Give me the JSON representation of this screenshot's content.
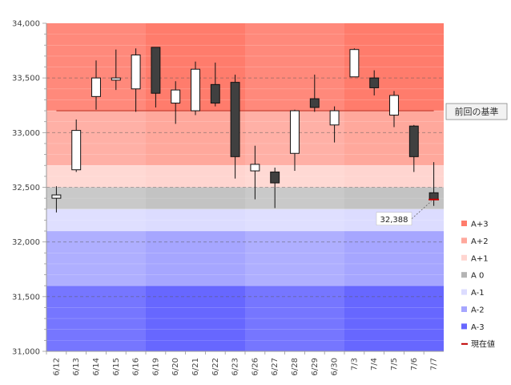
{
  "chart_data": {
    "type": "candlestick",
    "ylim": [
      31000,
      34000
    ],
    "yticks": [
      31000,
      31500,
      32000,
      32500,
      33000,
      33500,
      34000
    ],
    "ytick_labels": [
      "31,000",
      "31,500",
      "32,000",
      "32,500",
      "33,000",
      "33,500",
      "34,000"
    ],
    "categories": [
      "6/12",
      "6/13",
      "6/14",
      "6/15",
      "6/16",
      "6/19",
      "6/20",
      "6/21",
      "6/22",
      "6/23",
      "6/26",
      "6/27",
      "6/28",
      "6/29",
      "6/30",
      "7/3",
      "7/4",
      "7/5",
      "7/6",
      "7/7"
    ],
    "candles": [
      {
        "open": 32400,
        "close": 32430,
        "high": 32510,
        "low": 32270
      },
      {
        "open": 32660,
        "close": 33020,
        "high": 33120,
        "low": 32640
      },
      {
        "open": 33330,
        "close": 33500,
        "high": 33660,
        "low": 33210
      },
      {
        "open": 33480,
        "close": 33500,
        "high": 33760,
        "low": 33390
      },
      {
        "open": 33400,
        "close": 33710,
        "high": 33770,
        "low": 33190
      },
      {
        "open": 33780,
        "close": 33360,
        "high": 33780,
        "low": 33230
      },
      {
        "open": 33270,
        "close": 33390,
        "high": 33470,
        "low": 33080
      },
      {
        "open": 33200,
        "close": 33580,
        "high": 33650,
        "low": 33160
      },
      {
        "open": 33440,
        "close": 33270,
        "high": 33640,
        "low": 33240
      },
      {
        "open": 33460,
        "close": 32780,
        "high": 33530,
        "low": 32580
      },
      {
        "open": 32650,
        "close": 32710,
        "high": 32880,
        "low": 32390
      },
      {
        "open": 32640,
        "close": 32540,
        "high": 32680,
        "low": 32310
      },
      {
        "open": 32810,
        "close": 33200,
        "high": 33210,
        "low": 32650
      },
      {
        "open": 33310,
        "close": 33230,
        "high": 33530,
        "low": 33190
      },
      {
        "open": 33070,
        "close": 33200,
        "high": 33240,
        "low": 32910
      },
      {
        "open": 33510,
        "close": 33760,
        "high": 33770,
        "low": 33510
      },
      {
        "open": 33500,
        "close": 33410,
        "high": 33570,
        "low": 33340
      },
      {
        "open": 33160,
        "close": 33340,
        "high": 33380,
        "low": 33050
      },
      {
        "open": 33060,
        "close": 32780,
        "high": 33070,
        "low": 32640
      },
      {
        "open": 32450,
        "close": 32388,
        "high": 32730,
        "low": 32330
      }
    ],
    "zones": [
      {
        "name": "A+3",
        "from": 33200,
        "to": 34000,
        "color": "#ff7c6c"
      },
      {
        "name": "A+2",
        "from": 32700,
        "to": 33200,
        "color": "#ffa89c"
      },
      {
        "name": "A+1",
        "from": 32500,
        "to": 32700,
        "color": "#ffd5d0"
      },
      {
        "name": "A 0",
        "from": 32300,
        "to": 32500,
        "color": "#c3c3c3"
      },
      {
        "name": "A-1",
        "from": 32100,
        "to": 32300,
        "color": "#dcdcff"
      },
      {
        "name": "A-2",
        "from": 31600,
        "to": 32100,
        "color": "#a6a6ff"
      },
      {
        "name": "A-3",
        "from": 31000,
        "to": 31600,
        "color": "#6767ff"
      }
    ],
    "week_shading": [
      {
        "from_index": 5,
        "to_index": 9
      },
      {
        "from_index": 15,
        "to_index": 19
      }
    ],
    "previous_reference": {
      "label": "前回の基準",
      "value": 33200,
      "color": "#c0392b"
    },
    "current_value": {
      "label": "現在値",
      "value": 32388,
      "display": "32,388",
      "color": "#c00000"
    },
    "legend": [
      {
        "label": "A+3",
        "color": "#ff7c6c"
      },
      {
        "label": "A+2",
        "color": "#ffa89c"
      },
      {
        "label": "A+1",
        "color": "#ffd5d0"
      },
      {
        "label": "A 0",
        "color": "#b4b4b4"
      },
      {
        "label": "A-1",
        "color": "#dcdcff"
      },
      {
        "label": "A-2",
        "color": "#a6a6ff"
      },
      {
        "label": "A-3",
        "color": "#6767ff"
      },
      {
        "label": "現在値",
        "color": "#c00000",
        "line": true
      }
    ]
  }
}
